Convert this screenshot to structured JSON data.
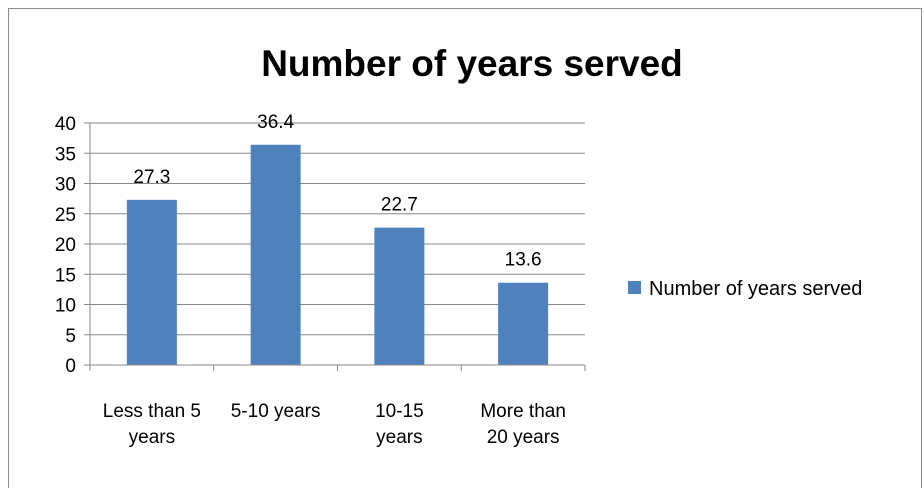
{
  "chart_data": {
    "type": "bar",
    "title": "Number of years served",
    "categories": [
      [
        "Less than 5",
        "years"
      ],
      [
        "5-10 years"
      ],
      [
        "10-15",
        "years"
      ],
      [
        "More than",
        "20 years"
      ]
    ],
    "series": [
      {
        "name": "Number of years served",
        "values": [
          27.3,
          36.4,
          22.7,
          13.6
        ],
        "color": "#4f81bd"
      }
    ],
    "data_labels": [
      "27.3",
      "36.4",
      "22.7",
      "13.6"
    ],
    "ylim": [
      0,
      40
    ],
    "yticks": [
      0,
      5,
      10,
      15,
      20,
      25,
      30,
      35,
      40
    ],
    "grid": true,
    "legend_position": "right",
    "xlabel": "",
    "ylabel": ""
  }
}
